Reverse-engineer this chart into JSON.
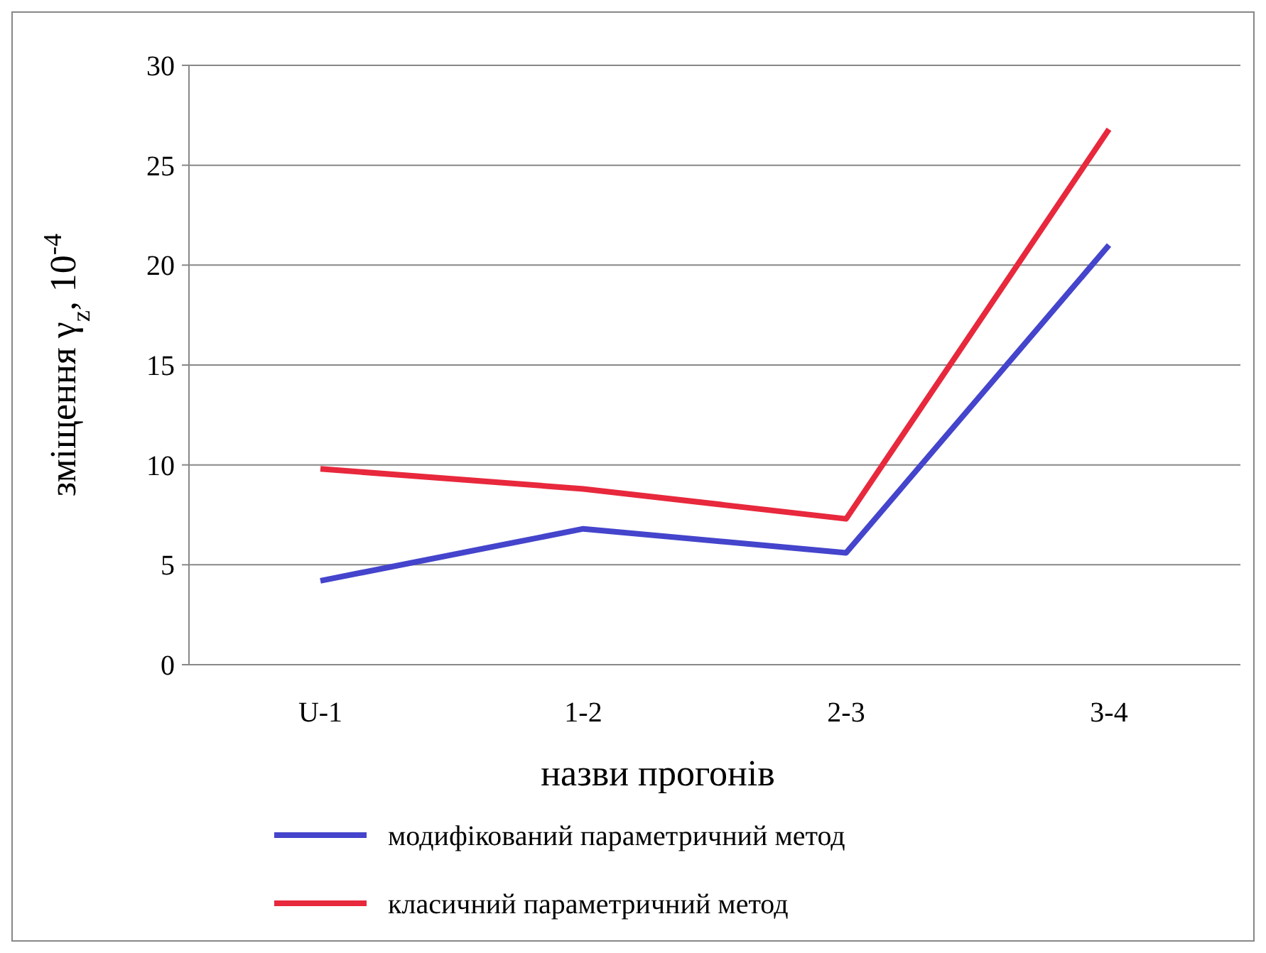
{
  "chart_data": {
    "type": "line",
    "xlabel": "назви прогонів",
    "ylabel": "зміщення γ$_{z}$, 10$^{-4}$",
    "categories": [
      "U-1",
      "1-2",
      "2-3",
      "3-4"
    ],
    "series": [
      {
        "name": "модифікований параметричний метод",
        "color": "#4444cc",
        "values": [
          4.2,
          6.8,
          5.6,
          21
        ]
      },
      {
        "name": "класичний параметричний метод",
        "color": "#e8283c",
        "values": [
          9.8,
          8.8,
          7.3,
          26.8
        ]
      }
    ],
    "ylim": [
      0,
      30
    ],
    "yticks": [
      0,
      5,
      10,
      15,
      20,
      25,
      30
    ],
    "grid": "y",
    "legend": "bottom",
    "marker": "none",
    "line_style": "solid"
  }
}
